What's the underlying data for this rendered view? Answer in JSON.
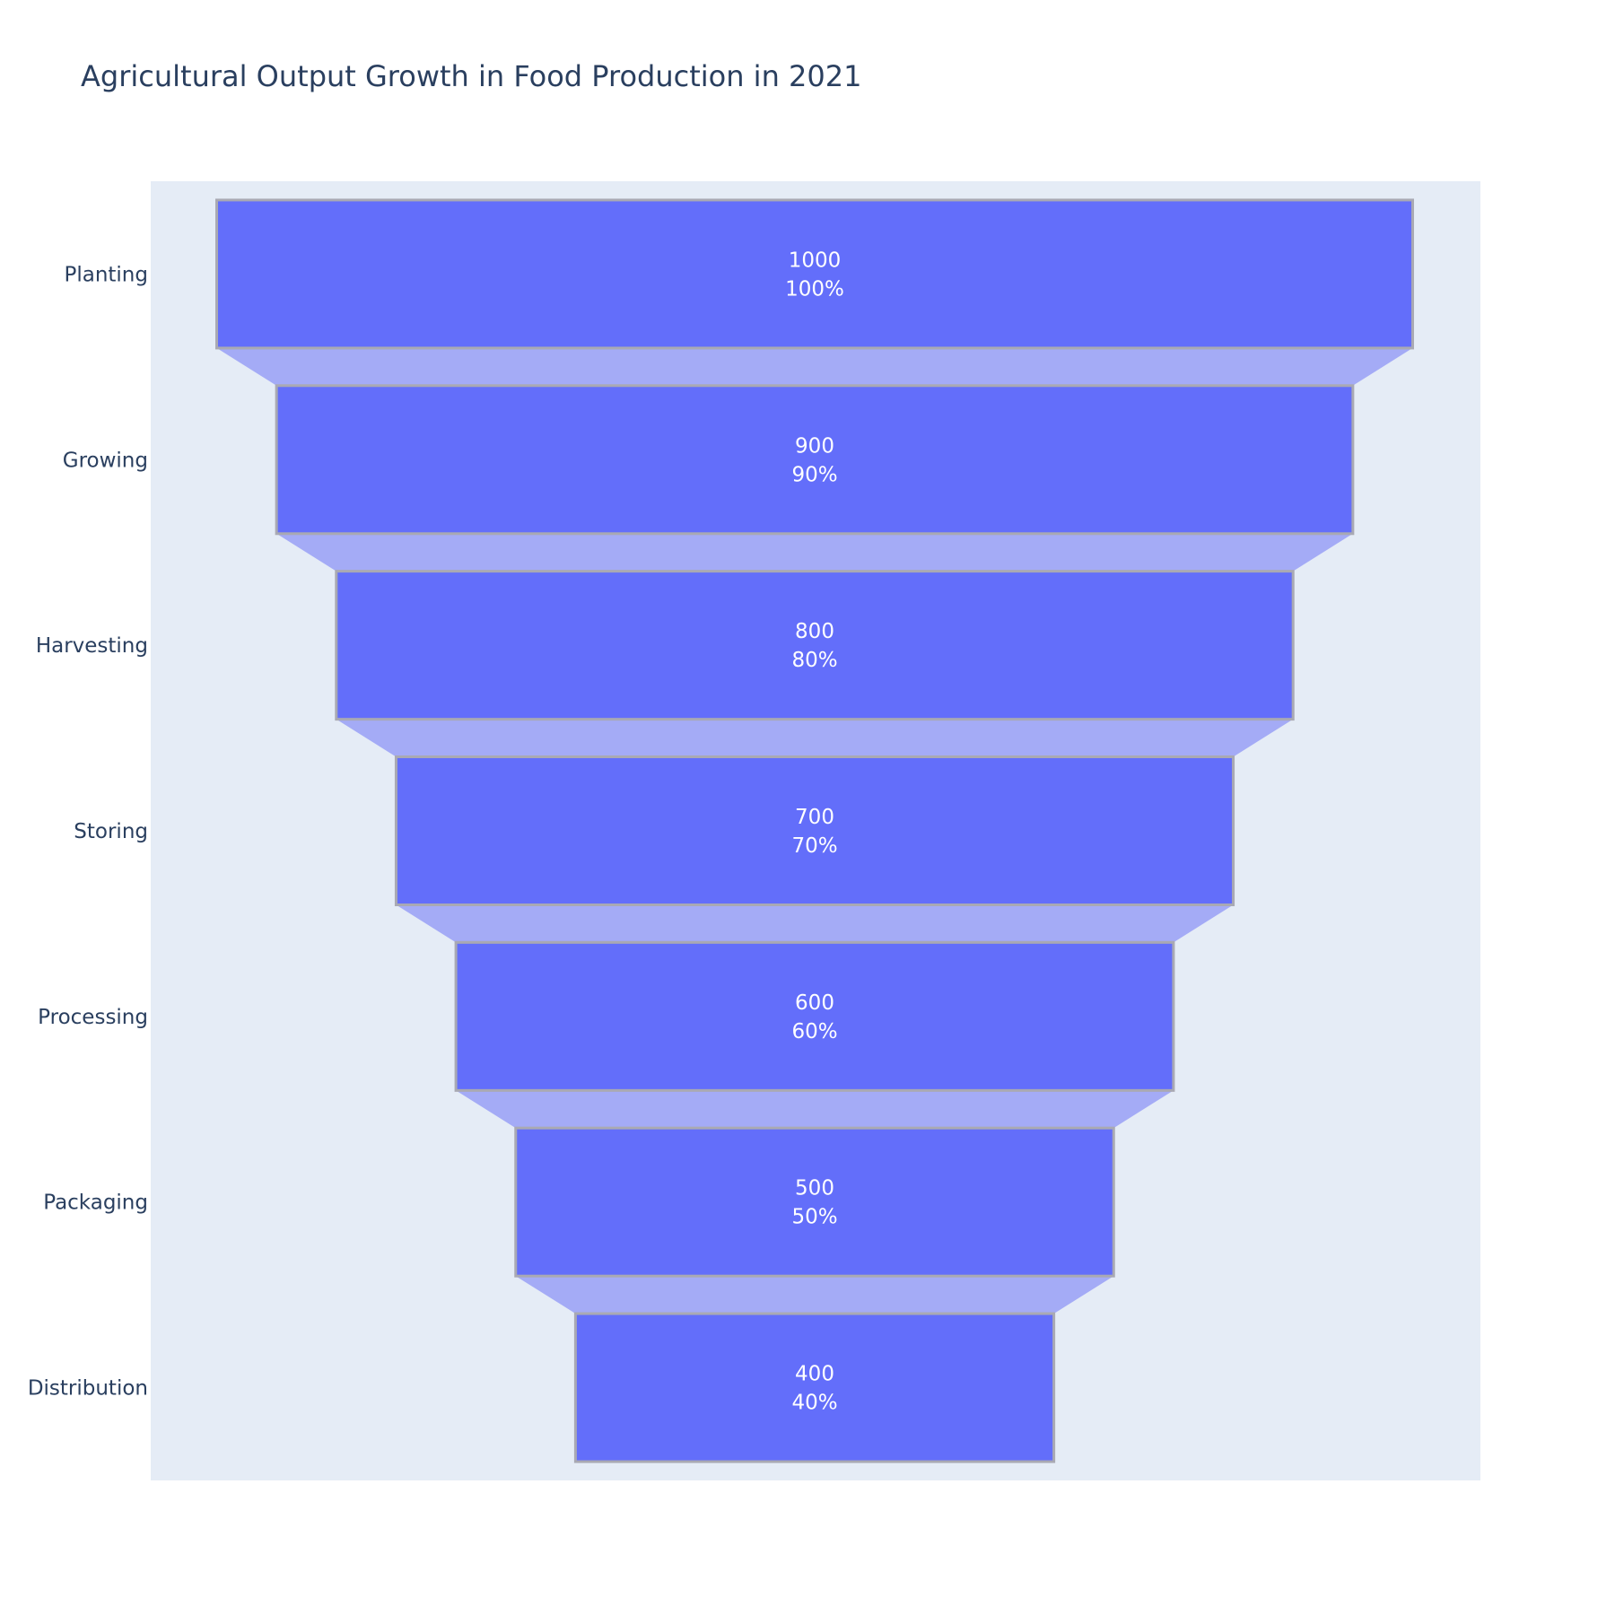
{
  "chart_data": {
    "type": "funnel",
    "title": "Agricultural Output Growth in Food Production in 2021",
    "categories": [
      "Planting",
      "Growing",
      "Harvesting",
      "Storing",
      "Processing",
      "Packaging",
      "Distribution"
    ],
    "values": [
      1000,
      900,
      800,
      700,
      600,
      500,
      400
    ],
    "percent_labels": [
      "100%",
      "90%",
      "80%",
      "70%",
      "60%",
      "50%",
      "40%"
    ],
    "textinfo": "value+percent initial",
    "colors": {
      "bar": "#636efa",
      "connector": "#a4abf6",
      "bar_outline": "#a9a9b3",
      "plot_background": "#e5ecf6",
      "text": "#2a3f5f",
      "value_text": "#ffffff"
    }
  }
}
